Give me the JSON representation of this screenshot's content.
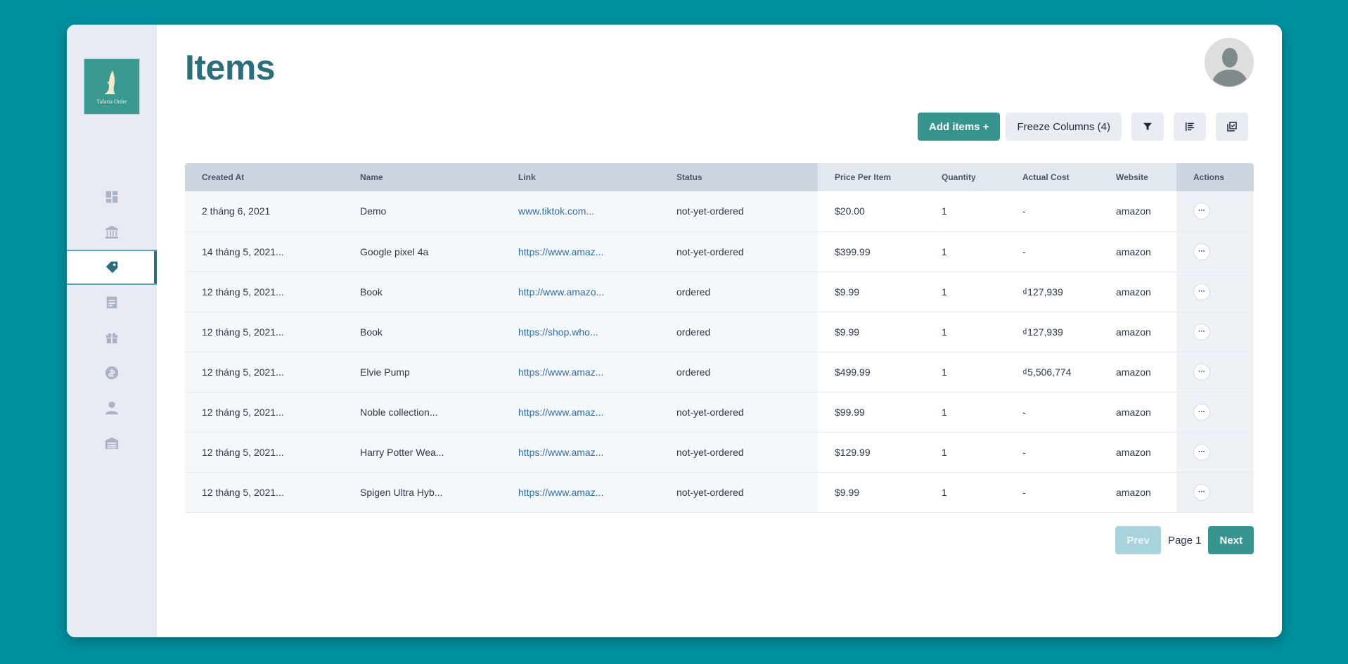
{
  "logo": {
    "text": "Tafaria Order"
  },
  "sidebar": {
    "items": [
      {
        "icon": "dashboard-icon",
        "active": false
      },
      {
        "icon": "bank-icon",
        "active": false
      },
      {
        "icon": "tag-icon",
        "active": true
      },
      {
        "icon": "document-icon",
        "active": false
      },
      {
        "icon": "gift-icon",
        "active": false
      },
      {
        "icon": "coin-icon",
        "active": false
      },
      {
        "icon": "user-icon",
        "active": false
      },
      {
        "icon": "warehouse-icon",
        "active": false
      }
    ]
  },
  "header": {
    "title": "Items"
  },
  "toolbar": {
    "add_label": "Add items +",
    "freeze_label": "Freeze Columns (4)"
  },
  "table": {
    "columns": [
      "Created At",
      "Name",
      "Link",
      "Status",
      "Price Per Item",
      "Quantity",
      "Actual Cost",
      "Website",
      "Actions"
    ],
    "rows": [
      [
        "2 tháng 6, 2021",
        "Demo",
        "www.tiktok.com...",
        "not-yet-ordered",
        "$20.00",
        "1",
        "-",
        "amazon"
      ],
      [
        "14 tháng 5, 2021...",
        "Google pixel 4a",
        "https://www.amaz...",
        "not-yet-ordered",
        "$399.99",
        "1",
        "-",
        "amazon"
      ],
      [
        "12 tháng 5, 2021...",
        "Book",
        "http://www.amazo...",
        "ordered",
        "$9.99",
        "1",
        "₫127,939",
        "amazon"
      ],
      [
        "12 tháng 5, 2021...",
        "Book",
        "https://shop.who...",
        "ordered",
        "$9.99",
        "1",
        "₫127,939",
        "amazon"
      ],
      [
        "12 tháng 5, 2021...",
        "Elvie Pump",
        "https://www.amaz...",
        "ordered",
        "$499.99",
        "1",
        "₫5,506,774",
        "amazon"
      ],
      [
        "12 tháng 5, 2021...",
        "Noble collection...",
        "https://www.amaz...",
        "not-yet-ordered",
        "$99.99",
        "1",
        "-",
        "amazon"
      ],
      [
        "12 tháng 5, 2021...",
        "Harry Potter Wea...",
        "https://www.amaz...",
        "not-yet-ordered",
        "$129.99",
        "1",
        "-",
        "amazon"
      ],
      [
        "12 tháng 5, 2021...",
        "Spigen Ultra Hyb...",
        "https://www.amaz...",
        "not-yet-ordered",
        "$9.99",
        "1",
        "-",
        "amazon"
      ]
    ],
    "actions_glyph": "···"
  },
  "pagination": {
    "prev_label": "Prev",
    "page_label": "Page 1",
    "next_label": "Next"
  },
  "colors": {
    "background": "#00909e",
    "accent": "#37958f",
    "title": "#2b6f7c"
  }
}
